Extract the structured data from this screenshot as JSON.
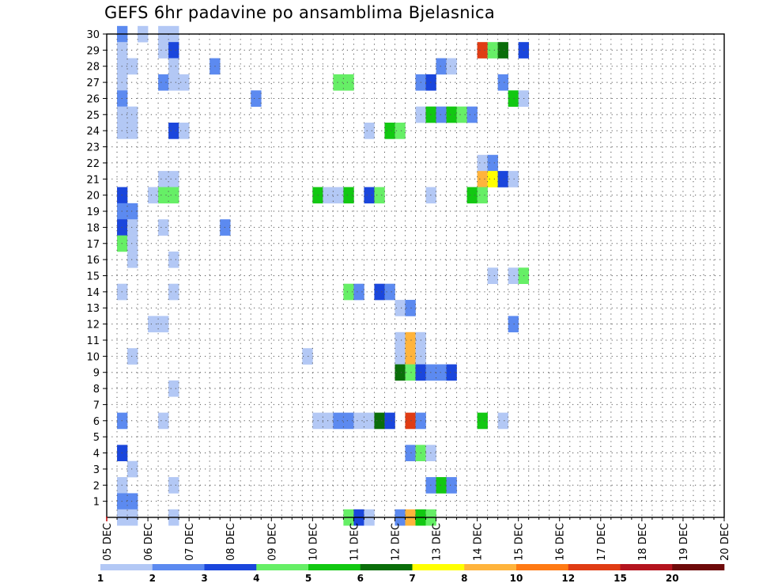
{
  "chart_data": {
    "type": "heatmap",
    "title": "GEFS 6hr padavine po ansamblima Bjelasnica",
    "xlabel": "",
    "ylabel": "",
    "x_ticks": [
      "05 DEC",
      "06 DEC",
      "07 DEC",
      "08 DEC",
      "09 DEC",
      "10 DEC",
      "11 DEC",
      "12 DEC",
      "13 DEC",
      "14 DEC",
      "15 DEC",
      "16 DEC",
      "17 DEC",
      "18 DEC",
      "19 DEC",
      "20 DEC"
    ],
    "x_range": [
      0,
      60
    ],
    "y_ticks": [
      "1",
      "2",
      "3",
      "4",
      "5",
      "6",
      "7",
      "8",
      "9",
      "10",
      "11",
      "12",
      "13",
      "14",
      "15",
      "16",
      "17",
      "18",
      "19",
      "20",
      "21",
      "22",
      "23",
      "24",
      "25",
      "26",
      "27",
      "28",
      "29",
      "30"
    ],
    "y_range": [
      0,
      30
    ],
    "grid": "dotted",
    "colorbar": {
      "labels": [
        "1",
        "2",
        "3",
        "4",
        "5",
        "6",
        "7",
        "8",
        "10",
        "12",
        "15",
        "20"
      ],
      "colors": [
        "#b3c8f5",
        "#5c8af0",
        "#1a46dc",
        "#66ef66",
        "#12c812",
        "#0a6e0a",
        "#ffff00",
        "#ffb43c",
        "#ff7a14",
        "#e03c14",
        "#b4141e",
        "#6e0a0a"
      ]
    },
    "cells": [
      {
        "t": 1,
        "m": 30,
        "c": 1
      },
      {
        "t": 1,
        "m": 29,
        "c": 0
      },
      {
        "t": 1,
        "m": 28,
        "c": 0
      },
      {
        "t": 2,
        "m": 28,
        "c": 0
      },
      {
        "t": 1,
        "m": 27,
        "c": 0
      },
      {
        "t": 1,
        "m": 26,
        "c": 1
      },
      {
        "t": 1,
        "m": 25,
        "c": 0
      },
      {
        "t": 2,
        "m": 25,
        "c": 0
      },
      {
        "t": 1,
        "m": 24,
        "c": 0
      },
      {
        "t": 2,
        "m": 24,
        "c": 0
      },
      {
        "t": 1,
        "m": 20,
        "c": 2
      },
      {
        "t": 1,
        "m": 19,
        "c": 1
      },
      {
        "t": 2,
        "m": 19,
        "c": 1
      },
      {
        "t": 1,
        "m": 18,
        "c": 2
      },
      {
        "t": 2,
        "m": 18,
        "c": 0
      },
      {
        "t": 1,
        "m": 17,
        "c": 3
      },
      {
        "t": 2,
        "m": 17,
        "c": 0
      },
      {
        "t": 2,
        "m": 16,
        "c": 0
      },
      {
        "t": 1,
        "m": 14,
        "c": 0
      },
      {
        "t": 2,
        "m": 10,
        "c": 0
      },
      {
        "t": 1,
        "m": 6,
        "c": 1
      },
      {
        "t": 1,
        "m": 4,
        "c": 2
      },
      {
        "t": 2,
        "m": 3,
        "c": 0
      },
      {
        "t": 1,
        "m": 2,
        "c": 0
      },
      {
        "t": 1,
        "m": 1,
        "c": 1
      },
      {
        "t": 2,
        "m": 1,
        "c": 1
      },
      {
        "t": 1,
        "m": 0,
        "c": 0
      },
      {
        "t": 2,
        "m": 0,
        "c": 0
      },
      {
        "t": 3,
        "m": 30,
        "c": 0
      },
      {
        "t": 5,
        "m": 30,
        "c": 0
      },
      {
        "t": 6,
        "m": 30,
        "c": 0
      },
      {
        "t": 5,
        "m": 29,
        "c": 0
      },
      {
        "t": 6,
        "m": 29,
        "c": 2
      },
      {
        "t": 6,
        "m": 28,
        "c": 0
      },
      {
        "t": 5,
        "m": 27,
        "c": 1
      },
      {
        "t": 6,
        "m": 27,
        "c": 0
      },
      {
        "t": 7,
        "m": 27,
        "c": 0
      },
      {
        "t": 6,
        "m": 24,
        "c": 2
      },
      {
        "t": 7,
        "m": 24,
        "c": 0
      },
      {
        "t": 5,
        "m": 21,
        "c": 0
      },
      {
        "t": 6,
        "m": 21,
        "c": 0
      },
      {
        "t": 4,
        "m": 20,
        "c": 0
      },
      {
        "t": 5,
        "m": 20,
        "c": 3
      },
      {
        "t": 6,
        "m": 20,
        "c": 3
      },
      {
        "t": 5,
        "m": 18,
        "c": 0
      },
      {
        "t": 6,
        "m": 16,
        "c": 0
      },
      {
        "t": 6,
        "m": 14,
        "c": 0
      },
      {
        "t": 4,
        "m": 12,
        "c": 0
      },
      {
        "t": 5,
        "m": 12,
        "c": 0
      },
      {
        "t": 6,
        "m": 8,
        "c": 0
      },
      {
        "t": 5,
        "m": 6,
        "c": 0
      },
      {
        "t": 6,
        "m": 2,
        "c": 0
      },
      {
        "t": 6,
        "m": 0,
        "c": 0
      },
      {
        "t": 10,
        "m": 28,
        "c": 1
      },
      {
        "t": 11,
        "m": 18,
        "c": 1
      },
      {
        "t": 14,
        "m": 26,
        "c": 1
      },
      {
        "t": 19,
        "m": 10,
        "c": 0
      },
      {
        "t": 20,
        "m": 20,
        "c": 4
      },
      {
        "t": 21,
        "m": 20,
        "c": 0
      },
      {
        "t": 20,
        "m": 6,
        "c": 0
      },
      {
        "t": 21,
        "m": 6,
        "c": 0
      },
      {
        "t": 22,
        "m": 27,
        "c": 3
      },
      {
        "t": 23,
        "m": 27,
        "c": 3
      },
      {
        "t": 22,
        "m": 20,
        "c": 0
      },
      {
        "t": 23,
        "m": 20,
        "c": 4
      },
      {
        "t": 22,
        "m": 6,
        "c": 1
      },
      {
        "t": 23,
        "m": 6,
        "c": 1
      },
      {
        "t": 23,
        "m": 14,
        "c": 3
      },
      {
        "t": 23,
        "m": 0,
        "c": 3
      },
      {
        "t": 24,
        "m": 14,
        "c": 1
      },
      {
        "t": 24,
        "m": 6,
        "c": 0
      },
      {
        "t": 24,
        "m": 0,
        "c": 2
      },
      {
        "t": 25,
        "m": 24,
        "c": 0
      },
      {
        "t": 25,
        "m": 20,
        "c": 2
      },
      {
        "t": 25,
        "m": 6,
        "c": 0
      },
      {
        "t": 25,
        "m": 0,
        "c": 0
      },
      {
        "t": 26,
        "m": 20,
        "c": 3
      },
      {
        "t": 26,
        "m": 14,
        "c": 2
      },
      {
        "t": 26,
        "m": 6,
        "c": 5
      },
      {
        "t": 27,
        "m": 24,
        "c": 4
      },
      {
        "t": 27,
        "m": 14,
        "c": 1
      },
      {
        "t": 27,
        "m": 6,
        "c": 2
      },
      {
        "t": 28,
        "m": 24,
        "c": 3
      },
      {
        "t": 28,
        "m": 13,
        "c": 0
      },
      {
        "t": 28,
        "m": 11,
        "c": 0
      },
      {
        "t": 28,
        "m": 10,
        "c": 0
      },
      {
        "t": 28,
        "m": 9,
        "c": 5
      },
      {
        "t": 28,
        "m": 0,
        "c": 1
      },
      {
        "t": 29,
        "m": 13,
        "c": 1
      },
      {
        "t": 29,
        "m": 11,
        "c": 7
      },
      {
        "t": 29,
        "m": 10,
        "c": 7
      },
      {
        "t": 29,
        "m": 9,
        "c": 3
      },
      {
        "t": 29,
        "m": 6,
        "c": 9
      },
      {
        "t": 29,
        "m": 4,
        "c": 1
      },
      {
        "t": 29,
        "m": 0,
        "c": 7
      },
      {
        "t": 30,
        "m": 27,
        "c": 1
      },
      {
        "t": 30,
        "m": 25,
        "c": 0
      },
      {
        "t": 30,
        "m": 11,
        "c": 0
      },
      {
        "t": 30,
        "m": 10,
        "c": 0
      },
      {
        "t": 30,
        "m": 9,
        "c": 2
      },
      {
        "t": 30,
        "m": 6,
        "c": 1
      },
      {
        "t": 30,
        "m": 4,
        "c": 3
      },
      {
        "t": 30,
        "m": 0,
        "c": 4
      },
      {
        "t": 31,
        "m": 27,
        "c": 2
      },
      {
        "t": 31,
        "m": 25,
        "c": 4
      },
      {
        "t": 31,
        "m": 20,
        "c": 0
      },
      {
        "t": 31,
        "m": 9,
        "c": 1
      },
      {
        "t": 31,
        "m": 4,
        "c": 0
      },
      {
        "t": 31,
        "m": 2,
        "c": 1
      },
      {
        "t": 31,
        "m": 0,
        "c": 3
      },
      {
        "t": 32,
        "m": 28,
        "c": 1
      },
      {
        "t": 32,
        "m": 25,
        "c": 1
      },
      {
        "t": 32,
        "m": 9,
        "c": 1
      },
      {
        "t": 32,
        "m": 2,
        "c": 4
      },
      {
        "t": 33,
        "m": 28,
        "c": 0
      },
      {
        "t": 33,
        "m": 25,
        "c": 4
      },
      {
        "t": 33,
        "m": 9,
        "c": 2
      },
      {
        "t": 33,
        "m": 2,
        "c": 1
      },
      {
        "t": 34,
        "m": 25,
        "c": 3
      },
      {
        "t": 35,
        "m": 25,
        "c": 1
      },
      {
        "t": 35,
        "m": 20,
        "c": 4
      },
      {
        "t": 36,
        "m": 29,
        "c": 9
      },
      {
        "t": 36,
        "m": 22,
        "c": 0
      },
      {
        "t": 36,
        "m": 21,
        "c": 7
      },
      {
        "t": 36,
        "m": 20,
        "c": 3
      },
      {
        "t": 36,
        "m": 6,
        "c": 4
      },
      {
        "t": 37,
        "m": 29,
        "c": 3
      },
      {
        "t": 37,
        "m": 22,
        "c": 1
      },
      {
        "t": 37,
        "m": 21,
        "c": 6
      },
      {
        "t": 37,
        "m": 15,
        "c": 0
      },
      {
        "t": 38,
        "m": 29,
        "c": 5
      },
      {
        "t": 38,
        "m": 27,
        "c": 1
      },
      {
        "t": 38,
        "m": 21,
        "c": 2
      },
      {
        "t": 38,
        "m": 6,
        "c": 0
      },
      {
        "t": 39,
        "m": 21,
        "c": 0
      },
      {
        "t": 39,
        "m": 26,
        "c": 4
      },
      {
        "t": 39,
        "m": 15,
        "c": 0
      },
      {
        "t": 39,
        "m": 12,
        "c": 1
      },
      {
        "t": 40,
        "m": 29,
        "c": 2
      },
      {
        "t": 40,
        "m": 26,
        "c": 0
      },
      {
        "t": 40,
        "m": 15,
        "c": 3
      }
    ]
  }
}
